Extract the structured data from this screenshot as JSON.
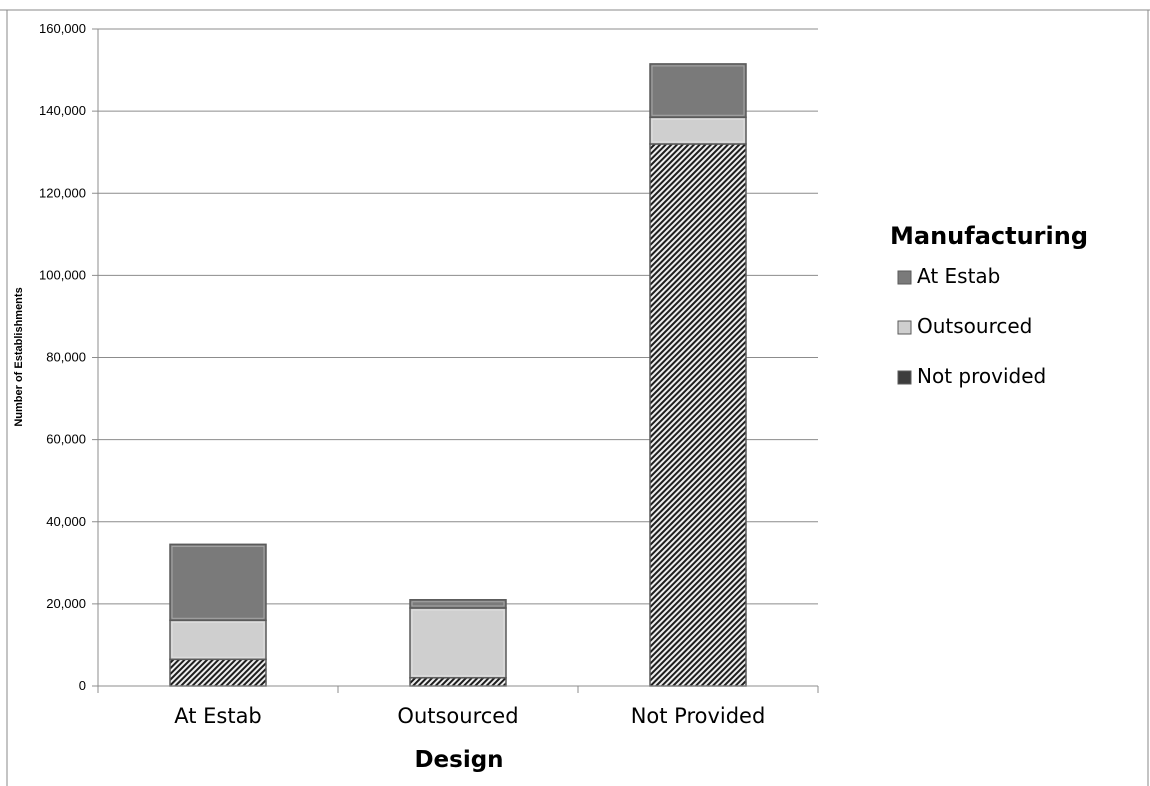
{
  "chart_data": {
    "type": "bar",
    "stacked": true,
    "title": "",
    "xlabel": "Design",
    "ylabel": "Number of Establishments",
    "ylim": [
      0,
      160000
    ],
    "yticks": [
      0,
      20000,
      40000,
      60000,
      80000,
      100000,
      120000,
      140000,
      160000
    ],
    "ytick_labels": [
      "0",
      "20,000",
      "40,000",
      "60,000",
      "80,000",
      "100,000",
      "120,000",
      "140,000",
      "160,000"
    ],
    "categories": [
      "At Estab",
      "Outsourced",
      "Not Provided"
    ],
    "series": [
      {
        "name": "Not provided",
        "values": [
          6500,
          2000,
          132000
        ],
        "color": "#3c3c3c",
        "pattern": "diagonal-hatch"
      },
      {
        "name": "Outsourced",
        "values": [
          9500,
          17000,
          6500
        ],
        "color": "#cfcfcf"
      },
      {
        "name": "At Estab",
        "values": [
          18500,
          2000,
          13000
        ],
        "color": "#7a7a7a"
      }
    ],
    "legend": {
      "title": "Manufacturing",
      "placement": "right",
      "entries": [
        "At Estab",
        "Outsourced",
        "Not provided"
      ]
    },
    "grid": true
  }
}
